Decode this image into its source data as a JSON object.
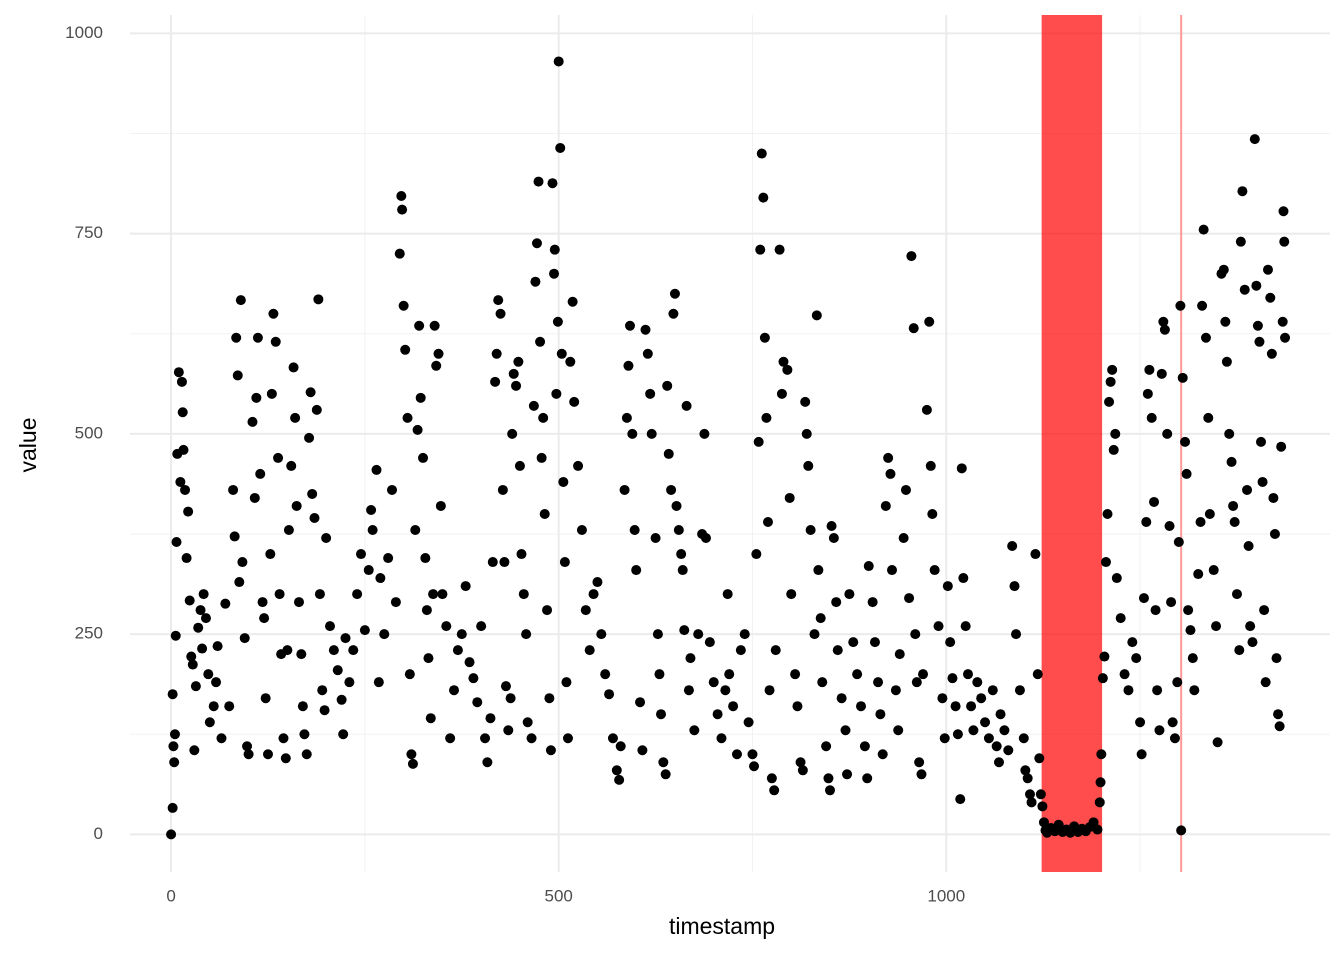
{
  "chart_data": {
    "type": "scatter",
    "x_label": "timestamp",
    "y_label": "value",
    "color": "#000000",
    "xlim": [
      -53,
      1495
    ],
    "ylim": [
      -47,
      1023
    ],
    "xticks": [
      0,
      500,
      1000
    ],
    "yticks": [
      0,
      250,
      500,
      750,
      1000
    ],
    "xminor": [
      250,
      750,
      1250
    ],
    "yminor": [
      125,
      375,
      625,
      875
    ],
    "grid": true,
    "highlights": [
      {
        "xmin": 1123,
        "xmax": 1201,
        "color": "#ff0000",
        "opacity": 0.7
      }
    ],
    "vlines": [
      {
        "x": 1303,
        "color": "#ff9999"
      }
    ],
    "x": [
      0,
      2,
      2,
      3,
      4,
      5,
      6,
      7,
      8,
      10,
      12,
      14,
      15,
      16,
      18,
      20,
      22,
      24,
      26,
      28,
      30,
      32,
      35,
      38,
      40,
      42,
      45,
      48,
      50,
      55,
      58,
      60,
      65,
      70,
      75,
      80,
      82,
      84,
      86,
      88,
      90,
      92,
      95,
      98,
      100,
      105,
      108,
      110,
      112,
      115,
      118,
      120,
      122,
      125,
      128,
      130,
      132,
      135,
      138,
      140,
      142,
      145,
      148,
      150,
      152,
      155,
      158,
      160,
      162,
      165,
      168,
      170,
      172,
      175,
      178,
      180,
      182,
      185,
      188,
      190,
      192,
      195,
      198,
      200,
      205,
      210,
      215,
      220,
      222,
      225,
      230,
      235,
      240,
      245,
      250,
      255,
      258,
      260,
      265,
      268,
      270,
      275,
      280,
      285,
      290,
      295,
      297,
      298,
      300,
      302,
      305,
      308,
      310,
      312,
      315,
      318,
      320,
      322,
      325,
      328,
      330,
      332,
      335,
      338,
      340,
      342,
      345,
      348,
      350,
      355,
      360,
      365,
      370,
      375,
      380,
      385,
      390,
      395,
      400,
      405,
      408,
      412,
      415,
      418,
      420,
      422,
      425,
      428,
      430,
      432,
      435,
      438,
      440,
      442,
      445,
      448,
      450,
      452,
      455,
      458,
      460,
      465,
      468,
      470,
      472,
      474,
      476,
      478,
      480,
      482,
      485,
      488,
      490,
      492,
      494,
      495,
      497,
      499,
      500,
      502,
      504,
      506,
      508,
      510,
      512,
      515,
      518,
      520,
      525,
      530,
      535,
      540,
      545,
      550,
      555,
      560,
      565,
      570,
      575,
      578,
      580,
      585,
      588,
      590,
      592,
      595,
      598,
      600,
      605,
      608,
      612,
      615,
      618,
      620,
      625,
      628,
      630,
      632,
      635,
      638,
      640,
      642,
      645,
      648,
      650,
      652,
      655,
      658,
      660,
      662,
      665,
      668,
      670,
      675,
      680,
      685,
      688,
      690,
      695,
      700,
      705,
      710,
      715,
      718,
      720,
      725,
      730,
      735,
      740,
      745,
      750,
      752,
      755,
      758,
      760,
      762,
      764,
      766,
      768,
      770,
      772,
      775,
      778,
      780,
      785,
      788,
      790,
      795,
      798,
      800,
      805,
      808,
      812,
      815,
      818,
      820,
      822,
      825,
      830,
      833,
      835,
      838,
      840,
      845,
      848,
      850,
      852,
      855,
      858,
      860,
      865,
      870,
      872,
      875,
      880,
      885,
      890,
      895,
      898,
      900,
      905,
      908,
      912,
      915,
      918,
      922,
      925,
      928,
      930,
      935,
      938,
      940,
      945,
      948,
      952,
      955,
      958,
      960,
      962,
      965,
      968,
      970,
      975,
      978,
      980,
      982,
      985,
      990,
      995,
      998,
      1002,
      1005,
      1008,
      1012,
      1015,
      1018,
      1020,
      1022,
      1025,
      1028,
      1032,
      1035,
      1040,
      1045,
      1050,
      1055,
      1060,
      1065,
      1068,
      1070,
      1075,
      1080,
      1085,
      1088,
      1090,
      1095,
      1100,
      1102,
      1105,
      1108,
      1110,
      1115,
      1118,
      1120,
      1122,
      1124,
      1126,
      1128,
      1130,
      1135,
      1140,
      1145,
      1150,
      1155,
      1160,
      1165,
      1170,
      1175,
      1180,
      1185,
      1190,
      1195,
      1198,
      1199,
      1200,
      1202,
      1204,
      1206,
      1208,
      1210,
      1212,
      1214,
      1216,
      1218,
      1220,
      1225,
      1230,
      1235,
      1240,
      1245,
      1250,
      1252,
      1255,
      1258,
      1260,
      1262,
      1265,
      1268,
      1270,
      1272,
      1275,
      1278,
      1280,
      1282,
      1285,
      1288,
      1290,
      1292,
      1295,
      1298,
      1300,
      1302,
      1303,
      1305,
      1308,
      1310,
      1312,
      1315,
      1318,
      1320,
      1325,
      1328,
      1330,
      1332,
      1335,
      1338,
      1340,
      1345,
      1348,
      1350,
      1355,
      1358,
      1360,
      1362,
      1365,
      1368,
      1370,
      1372,
      1375,
      1378,
      1380,
      1382,
      1385,
      1388,
      1390,
      1392,
      1395,
      1398,
      1400,
      1402,
      1404,
      1406,
      1408,
      1410,
      1412,
      1415,
      1418,
      1420,
      1422,
      1424,
      1426,
      1428,
      1430,
      1432,
      1434,
      1435,
      1436,
      1437
    ],
    "y": [
      0,
      33,
      175,
      110,
      90,
      125,
      248,
      365,
      475,
      577,
      440,
      565,
      527,
      480,
      430,
      345,
      403,
      292,
      222,
      212,
      105,
      185,
      258,
      280,
      232,
      300,
      270,
      200,
      140,
      160,
      190,
      235,
      120,
      288,
      160,
      430,
      372,
      620,
      573,
      315,
      667,
      340,
      245,
      110,
      100,
      515,
      420,
      545,
      620,
      450,
      290,
      270,
      170,
      100,
      350,
      550,
      650,
      615,
      470,
      300,
      225,
      120,
      95,
      230,
      380,
      460,
      583,
      520,
      410,
      290,
      225,
      160,
      125,
      100,
      495,
      552,
      425,
      395,
      530,
      668,
      300,
      180,
      155,
      370,
      260,
      230,
      205,
      168,
      125,
      245,
      190,
      230,
      300,
      350,
      255,
      330,
      405,
      380,
      455,
      190,
      320,
      250,
      345,
      430,
      290,
      725,
      797,
      780,
      660,
      605,
      520,
      200,
      100,
      88,
      380,
      505,
      635,
      545,
      470,
      345,
      280,
      220,
      145,
      300,
      635,
      585,
      600,
      410,
      300,
      260,
      120,
      180,
      230,
      250,
      310,
      215,
      195,
      165,
      260,
      120,
      90,
      145,
      340,
      565,
      600,
      667,
      650,
      430,
      340,
      185,
      130,
      170,
      500,
      575,
      560,
      590,
      460,
      350,
      300,
      250,
      140,
      120,
      535,
      690,
      738,
      815,
      615,
      470,
      520,
      400,
      280,
      170,
      105,
      813,
      700,
      730,
      550,
      640,
      965,
      857,
      600,
      440,
      340,
      190,
      120,
      590,
      665,
      540,
      460,
      380,
      280,
      230,
      300,
      315,
      250,
      200,
      175,
      120,
      80,
      68,
      110,
      430,
      520,
      585,
      635,
      500,
      380,
      330,
      165,
      105,
      630,
      600,
      550,
      500,
      370,
      250,
      200,
      150,
      90,
      75,
      560,
      475,
      430,
      650,
      675,
      410,
      380,
      350,
      330,
      255,
      535,
      180,
      220,
      130,
      250,
      375,
      500,
      370,
      240,
      190,
      150,
      120,
      180,
      300,
      200,
      160,
      100,
      230,
      250,
      140,
      100,
      85,
      350,
      490,
      730,
      850,
      795,
      620,
      520,
      390,
      180,
      70,
      55,
      230,
      730,
      550,
      590,
      580,
      420,
      300,
      200,
      160,
      90,
      80,
      540,
      500,
      460,
      380,
      250,
      648,
      330,
      270,
      190,
      110,
      70,
      55,
      385,
      370,
      290,
      230,
      170,
      130,
      75,
      300,
      240,
      200,
      160,
      110,
      70,
      335,
      290,
      240,
      190,
      150,
      100,
      410,
      470,
      450,
      330,
      180,
      130,
      225,
      370,
      430,
      295,
      722,
      632,
      250,
      190,
      90,
      75,
      200,
      530,
      640,
      460,
      400,
      330,
      260,
      170,
      120,
      310,
      240,
      195,
      160,
      125,
      44,
      457,
      320,
      260,
      200,
      160,
      130,
      190,
      170,
      140,
      120,
      180,
      110,
      90,
      150,
      130,
      105,
      360,
      310,
      250,
      180,
      120,
      80,
      70,
      50,
      40,
      350,
      200,
      95,
      50,
      35,
      15,
      5,
      2,
      8,
      4,
      12,
      3,
      6,
      2,
      10,
      3,
      7,
      4,
      9,
      15,
      6,
      40,
      65,
      100,
      195,
      222,
      340,
      400,
      540,
      565,
      580,
      480,
      500,
      320,
      270,
      200,
      180,
      240,
      220,
      140,
      100,
      295,
      390,
      550,
      580,
      520,
      415,
      280,
      180,
      130,
      575,
      640,
      630,
      500,
      385,
      290,
      140,
      120,
      190,
      365,
      660,
      5,
      570,
      490,
      450,
      280,
      255,
      220,
      180,
      325,
      390,
      660,
      755,
      620,
      520,
      400,
      330,
      260,
      115,
      700,
      705,
      640,
      590,
      500,
      465,
      410,
      390,
      300,
      230,
      740,
      803,
      680,
      430,
      360,
      260,
      240,
      868,
      685,
      635,
      615,
      490,
      440,
      280,
      190,
      705,
      670,
      600,
      420,
      375,
      220,
      150,
      135,
      484,
      640,
      778,
      740,
      620
    ]
  }
}
